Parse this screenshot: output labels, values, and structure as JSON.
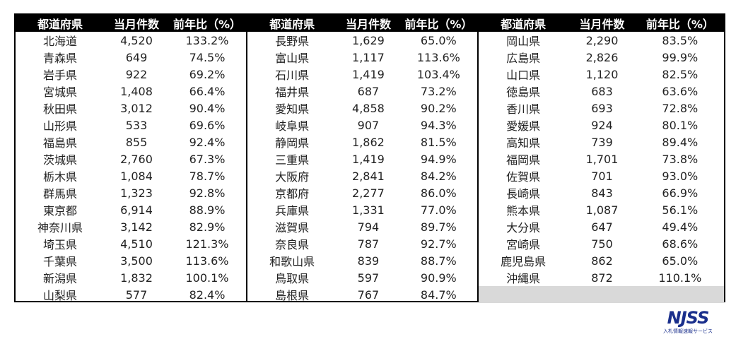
{
  "headers": {
    "pref": "都道府県",
    "count": "当月件数",
    "yoy": "前年比（%）"
  },
  "blocks": [
    {
      "rows": [
        {
          "pref": "北海道",
          "count": "4,520",
          "yoy": "133.2%"
        },
        {
          "pref": "青森県",
          "count": "649",
          "yoy": "74.5%"
        },
        {
          "pref": "岩手県",
          "count": "922",
          "yoy": "69.2%"
        },
        {
          "pref": "宮城県",
          "count": "1,408",
          "yoy": "66.4%"
        },
        {
          "pref": "秋田県",
          "count": "3,012",
          "yoy": "90.4%"
        },
        {
          "pref": "山形県",
          "count": "533",
          "yoy": "69.6%"
        },
        {
          "pref": "福島県",
          "count": "855",
          "yoy": "92.4%"
        },
        {
          "pref": "茨城県",
          "count": "2,760",
          "yoy": "67.3%"
        },
        {
          "pref": "栃木県",
          "count": "1,084",
          "yoy": "78.7%"
        },
        {
          "pref": "群馬県",
          "count": "1,323",
          "yoy": "92.8%"
        },
        {
          "pref": "東京都",
          "count": "6,914",
          "yoy": "88.9%"
        },
        {
          "pref": "神奈川県",
          "count": "3,142",
          "yoy": "82.9%"
        },
        {
          "pref": "埼玉県",
          "count": "4,510",
          "yoy": "121.3%"
        },
        {
          "pref": "千葉県",
          "count": "3,500",
          "yoy": "113.6%"
        },
        {
          "pref": "新潟県",
          "count": "1,832",
          "yoy": "100.1%"
        },
        {
          "pref": "山梨県",
          "count": "577",
          "yoy": "82.4%"
        }
      ]
    },
    {
      "rows": [
        {
          "pref": "長野県",
          "count": "1,629",
          "yoy": "65.0%"
        },
        {
          "pref": "富山県",
          "count": "1,117",
          "yoy": "113.6%"
        },
        {
          "pref": "石川県",
          "count": "1,419",
          "yoy": "103.4%"
        },
        {
          "pref": "福井県",
          "count": "687",
          "yoy": "73.2%"
        },
        {
          "pref": "愛知県",
          "count": "4,858",
          "yoy": "90.2%"
        },
        {
          "pref": "岐阜県",
          "count": "907",
          "yoy": "94.3%"
        },
        {
          "pref": "静岡県",
          "count": "1,862",
          "yoy": "81.5%"
        },
        {
          "pref": "三重県",
          "count": "1,419",
          "yoy": "94.9%"
        },
        {
          "pref": "大阪府",
          "count": "2,841",
          "yoy": "84.2%"
        },
        {
          "pref": "京都府",
          "count": "2,277",
          "yoy": "86.0%"
        },
        {
          "pref": "兵庫県",
          "count": "1,331",
          "yoy": "77.0%"
        },
        {
          "pref": "滋賀県",
          "count": "794",
          "yoy": "89.7%"
        },
        {
          "pref": "奈良県",
          "count": "787",
          "yoy": "92.7%"
        },
        {
          "pref": "和歌山県",
          "count": "839",
          "yoy": "88.7%"
        },
        {
          "pref": "鳥取県",
          "count": "597",
          "yoy": "90.9%"
        },
        {
          "pref": "島根県",
          "count": "767",
          "yoy": "84.7%"
        }
      ]
    },
    {
      "rows": [
        {
          "pref": "岡山県",
          "count": "2,290",
          "yoy": "83.5%"
        },
        {
          "pref": "広島県",
          "count": "2,826",
          "yoy": "99.9%"
        },
        {
          "pref": "山口県",
          "count": "1,120",
          "yoy": "82.5%"
        },
        {
          "pref": "徳島県",
          "count": "683",
          "yoy": "63.6%"
        },
        {
          "pref": "香川県",
          "count": "693",
          "yoy": "72.8%"
        },
        {
          "pref": "愛媛県",
          "count": "924",
          "yoy": "80.1%"
        },
        {
          "pref": "高知県",
          "count": "739",
          "yoy": "89.4%"
        },
        {
          "pref": "福岡県",
          "count": "1,701",
          "yoy": "73.8%"
        },
        {
          "pref": "佐賀県",
          "count": "701",
          "yoy": "93.0%"
        },
        {
          "pref": "長崎県",
          "count": "843",
          "yoy": "66.9%"
        },
        {
          "pref": "熊本県",
          "count": "1,087",
          "yoy": "56.1%"
        },
        {
          "pref": "大分県",
          "count": "647",
          "yoy": "49.4%"
        },
        {
          "pref": "宮崎県",
          "count": "750",
          "yoy": "68.6%"
        },
        {
          "pref": "鹿児島県",
          "count": "862",
          "yoy": "65.0%"
        },
        {
          "pref": "沖縄県",
          "count": "872",
          "yoy": "110.1%"
        }
      ]
    }
  ],
  "logo": {
    "text": "NJSS",
    "subtitle": "入札情報速報サービス",
    "color": "#1a2f8c"
  },
  "colors": {
    "header_bg": "#000000",
    "header_text": "#ffffff",
    "empty_cell": "#d9d9d9"
  }
}
